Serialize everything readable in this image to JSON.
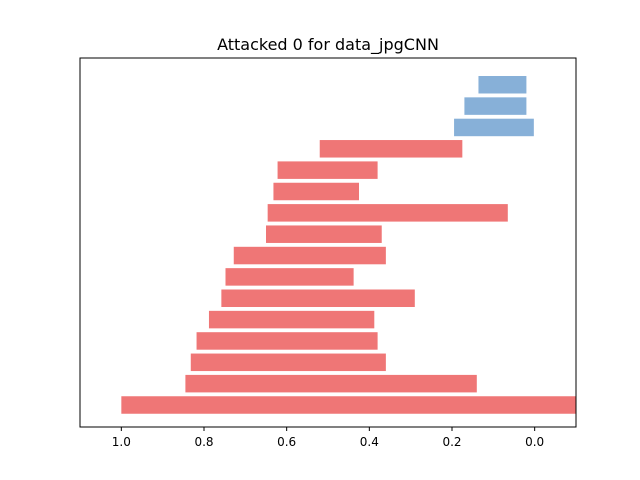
{
  "chart_data": {
    "type": "bar",
    "orientation": "horizontal",
    "title": "Attacked 0 for data_jpgCNN",
    "xlabel": "",
    "ylabel": "",
    "x_inverted": true,
    "xlim": [
      1.1,
      -0.1
    ],
    "xticks": [
      1.0,
      0.8,
      0.6,
      0.4,
      0.2,
      0.0
    ],
    "xtick_labels": [
      "1.0",
      "0.8",
      "0.6",
      "0.4",
      "0.2",
      "0.0"
    ],
    "y_ticks_visible": false,
    "grid": false,
    "colors": {
      "positive": "#87b0d8",
      "negative": "#ef7676"
    },
    "bars": [
      {
        "left": 1.0,
        "right": -0.1,
        "color": "negative"
      },
      {
        "left": 0.845,
        "right": 0.14,
        "color": "negative"
      },
      {
        "left": 0.832,
        "right": 0.36,
        "color": "negative"
      },
      {
        "left": 0.818,
        "right": 0.38,
        "color": "negative"
      },
      {
        "left": 0.788,
        "right": 0.388,
        "color": "negative"
      },
      {
        "left": 0.758,
        "right": 0.29,
        "color": "negative"
      },
      {
        "left": 0.748,
        "right": 0.438,
        "color": "negative"
      },
      {
        "left": 0.728,
        "right": 0.36,
        "color": "negative"
      },
      {
        "left": 0.65,
        "right": 0.37,
        "color": "negative"
      },
      {
        "left": 0.646,
        "right": 0.065,
        "color": "negative"
      },
      {
        "left": 0.632,
        "right": 0.425,
        "color": "negative"
      },
      {
        "left": 0.622,
        "right": 0.38,
        "color": "negative"
      },
      {
        "left": 0.52,
        "right": 0.175,
        "color": "negative"
      },
      {
        "left": 0.195,
        "right": 0.002,
        "color": "positive"
      },
      {
        "left": 0.17,
        "right": 0.02,
        "color": "positive"
      },
      {
        "left": 0.136,
        "right": 0.02,
        "color": "positive"
      }
    ]
  }
}
